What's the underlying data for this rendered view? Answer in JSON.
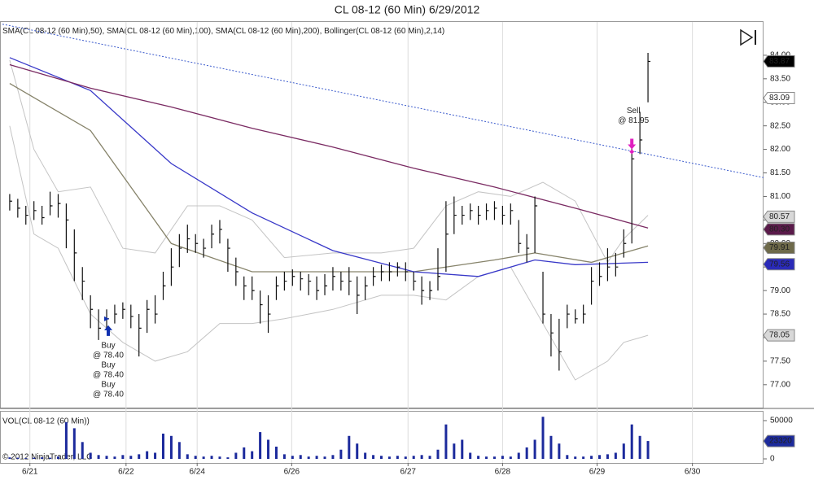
{
  "chart_data": {
    "type": "ohlc",
    "title": "CL 08-12 (60 Min)  6/29/2012",
    "volume_title": "VOL(CL 08-12 (60 Min))",
    "copyright": "© 2012 NinjaTrader, LLC",
    "xlim": [
      -1.2,
      93.3
    ],
    "xticks": [
      {
        "value": 2.5,
        "label": "6/21"
      },
      {
        "value": 14.4,
        "label": "6/22"
      },
      {
        "value": 23.2,
        "label": "6/24"
      },
      {
        "value": 34.9,
        "label": "6/26"
      },
      {
        "value": 49.3,
        "label": "6/27"
      },
      {
        "value": 61,
        "label": "6/28"
      },
      {
        "value": 72.7,
        "label": "6/29"
      },
      {
        "value": 84.5,
        "label": "6/30"
      }
    ],
    "ylim": [
      76.53,
      84.69
    ],
    "yticks": [
      {
        "value": 77,
        "label": "77.00"
      },
      {
        "value": 77.5,
        "label": "77.50"
      },
      {
        "value": 78,
        "label": "78.00"
      },
      {
        "value": 78.5,
        "label": "78.50"
      },
      {
        "value": 79,
        "label": "79.00"
      },
      {
        "value": 79.5,
        "label": "79.50"
      },
      {
        "value": 80,
        "label": "80.00"
      },
      {
        "value": 80.5,
        "label": "80.50"
      },
      {
        "value": 81,
        "label": "81.00"
      },
      {
        "value": 81.5,
        "label": "81.50"
      },
      {
        "value": 82,
        "label": "82.00"
      },
      {
        "value": 82.5,
        "label": "82.50"
      },
      {
        "value": 83,
        "label": "83.00"
      },
      {
        "value": 83.5,
        "label": "83.50"
      },
      {
        "value": 84,
        "label": "84.00"
      }
    ],
    "bar_color": "#111111",
    "high": [
      81.05,
      80.95,
      80.8,
      80.9,
      80.8,
      81.1,
      81.05,
      80.85,
      80.3,
      79.5,
      78.9,
      78.6,
      78.6,
      78.7,
      78.75,
      78.7,
      78.5,
      78.8,
      78.9,
      79.4,
      79.9,
      80.2,
      80.4,
      80.2,
      80.1,
      80.4,
      80.5,
      80.1,
      79.7,
      79.3,
      79.3,
      79.0,
      78.9,
      79.3,
      79.4,
      79.45,
      79.4,
      79.35,
      79.3,
      79.35,
      79.5,
      79.4,
      79.5,
      79.3,
      79.3,
      79.5,
      79.55,
      79.6,
      79.6,
      79.6,
      79.4,
      79.3,
      79.2,
      79.9,
      80.9,
      81.0,
      80.8,
      80.85,
      80.8,
      80.85,
      80.9,
      80.8,
      80.85,
      80.5,
      80.2,
      81.0,
      79.4,
      78.5,
      78.4,
      78.7,
      78.6,
      78.7,
      79.5,
      79.6,
      79.9,
      79.8,
      80.3,
      82.1,
      82.8,
      84.05
    ],
    "low": [
      80.7,
      80.55,
      80.4,
      80.5,
      80.4,
      80.6,
      80.55,
      79.9,
      79.2,
      78.8,
      78.2,
      77.95,
      78.2,
      78.3,
      78.4,
      78.2,
      77.6,
      78.1,
      78.3,
      78.8,
      79.1,
      79.5,
      79.8,
      79.8,
      79.7,
      79.9,
      80.0,
      79.4,
      79.1,
      78.8,
      78.8,
      78.3,
      78.1,
      78.8,
      79.0,
      79.1,
      79.0,
      78.9,
      78.8,
      78.9,
      79.0,
      79.0,
      78.9,
      78.5,
      78.8,
      79.1,
      79.2,
      79.2,
      79.3,
      79.2,
      79.0,
      78.7,
      78.8,
      79.0,
      79.4,
      80.2,
      80.4,
      80.5,
      80.4,
      80.5,
      80.5,
      80.4,
      80.4,
      79.8,
      79.6,
      79.8,
      78.3,
      77.6,
      77.3,
      78.2,
      78.3,
      78.3,
      78.7,
      79.1,
      79.2,
      79.3,
      79.7,
      80.0,
      81.9,
      83.0
    ],
    "close": [
      80.9,
      80.75,
      80.6,
      80.7,
      80.55,
      80.8,
      80.85,
      80.5,
      79.8,
      79.2,
      78.6,
      78.2,
      78.4,
      78.5,
      78.6,
      78.45,
      78.2,
      78.6,
      78.5,
      79.1,
      79.5,
      79.9,
      80.1,
      80.0,
      79.9,
      80.2,
      80.3,
      79.9,
      79.4,
      79.1,
      79.0,
      78.7,
      78.5,
      79.1,
      79.2,
      79.3,
      79.25,
      79.2,
      79.0,
      79.1,
      79.3,
      79.2,
      79.2,
      78.9,
      79.1,
      79.3,
      79.4,
      79.4,
      79.5,
      79.4,
      79.2,
      79.0,
      79.0,
      79.3,
      80.2,
      80.6,
      80.6,
      80.7,
      80.6,
      80.7,
      80.75,
      80.6,
      80.7,
      80.0,
      79.9,
      80.8,
      78.5,
      78.1,
      77.7,
      78.5,
      78.4,
      78.5,
      79.2,
      79.3,
      79.5,
      79.5,
      80.0,
      81.8,
      82.2,
      83.87
    ],
    "series": [
      {
        "name": "SMA(CL 08-12 (60 Min),50)",
        "color": "#86836a",
        "x": [
          0,
          10,
          20,
          30,
          40,
          50,
          60,
          65,
          72,
          79
        ],
        "values": [
          83.4,
          82.4,
          80.0,
          79.4,
          79.4,
          79.4,
          79.65,
          79.8,
          79.6,
          79.95
        ]
      },
      {
        "name": "SMA(CL 08-12 (60 Min),100)",
        "color": "#3838c8",
        "x": [
          0,
          10,
          20,
          30,
          40,
          50,
          58,
          65,
          70,
          79
        ],
        "values": [
          83.95,
          83.25,
          81.7,
          80.65,
          79.85,
          79.4,
          79.3,
          79.65,
          79.55,
          79.6
        ]
      },
      {
        "name": "SMA(CL 08-12 (60 Min),200)",
        "color": "#7a2a62",
        "x": [
          0,
          10,
          20,
          30,
          40,
          50,
          60,
          70,
          79
        ],
        "values": [
          83.8,
          83.3,
          82.9,
          82.45,
          82.05,
          81.6,
          81.2,
          80.75,
          80.33
        ]
      }
    ],
    "bollinger": {
      "name": "Bollinger(CL 08-12 (60 Min),2,14)",
      "color": "#c4c4c4",
      "x": [
        0,
        3,
        6,
        10,
        14,
        18,
        22,
        26,
        30,
        34,
        40,
        46,
        50,
        54,
        58,
        62,
        66,
        70,
        74,
        76,
        79
      ],
      "upper": [
        83.9,
        82.0,
        81.1,
        81.2,
        79.9,
        79.8,
        80.8,
        80.8,
        80.5,
        79.7,
        79.8,
        79.8,
        79.9,
        80.8,
        81.1,
        81.0,
        81.3,
        80.9,
        79.6,
        80.1,
        80.6
      ],
      "lower": [
        82.5,
        80.2,
        79.9,
        78.5,
        77.9,
        77.5,
        77.7,
        78.3,
        78.3,
        78.4,
        78.6,
        78.9,
        78.9,
        78.8,
        79.3,
        79.5,
        78.3,
        77.1,
        77.5,
        77.9,
        78.05
      ]
    },
    "trendline": {
      "color": "#3a5acc",
      "x": [
        -0.9,
        93.3
      ],
      "values": [
        84.66,
        81.4
      ]
    },
    "last_value_markers": [
      {
        "value": 83.87,
        "color": "#000000"
      },
      {
        "value": 83.09,
        "color": "#ffffff"
      },
      {
        "value": 80.57,
        "color": "#d8d8d8"
      },
      {
        "value": 80.3,
        "label": "80.30",
        "color": "#5a1a4a"
      },
      {
        "value": 79.91,
        "color": "#6e6a4a"
      },
      {
        "value": 79.56,
        "color": "#2a2ab8"
      },
      {
        "value": 78.05,
        "color": "#d8d8d8"
      }
    ],
    "annotations": [
      {
        "signal": "Buy",
        "label": "@ 78.40",
        "value": 78.4,
        "x": 12,
        "color": "#1030b0"
      },
      {
        "signal": "Buy",
        "label": "@ 78.40",
        "value": 78.4,
        "x": 12,
        "color": "#1030b0"
      },
      {
        "signal": "Buy",
        "label": "@ 78.40",
        "value": 78.4,
        "x": 12,
        "color": "#1030b0"
      },
      {
        "signal": "Sell",
        "label": "@ 81.95",
        "value": 81.95,
        "x": 77,
        "color": "#e020c0"
      }
    ],
    "volume": {
      "color": "#1c2a9c",
      "ylim": [
        0,
        60600
      ],
      "yticks": [
        0,
        50000
      ],
      "last_value": 23320,
      "values": [
        2000,
        1500,
        1000,
        1500,
        2000,
        1500,
        3000,
        48000,
        40000,
        22000,
        8000,
        5000,
        4000,
        3000,
        5000,
        4000,
        6000,
        10000,
        8000,
        33000,
        30000,
        22000,
        6000,
        4000,
        3000,
        4000,
        3000,
        2000,
        8000,
        15000,
        10000,
        35000,
        25000,
        16000,
        6000,
        4000,
        5000,
        3000,
        4000,
        3000,
        5000,
        12000,
        30000,
        20000,
        8000,
        5000,
        4000,
        3000,
        4000,
        3000,
        4000,
        5000,
        4000,
        12000,
        45000,
        20000,
        25000,
        8000,
        4000,
        3000,
        3000,
        4000,
        3000,
        8000,
        15000,
        25000,
        55000,
        30000,
        20000,
        5000,
        3000,
        3000,
        4000,
        5000,
        6000,
        8000,
        20000,
        45000,
        30000,
        23320
      ]
    }
  }
}
